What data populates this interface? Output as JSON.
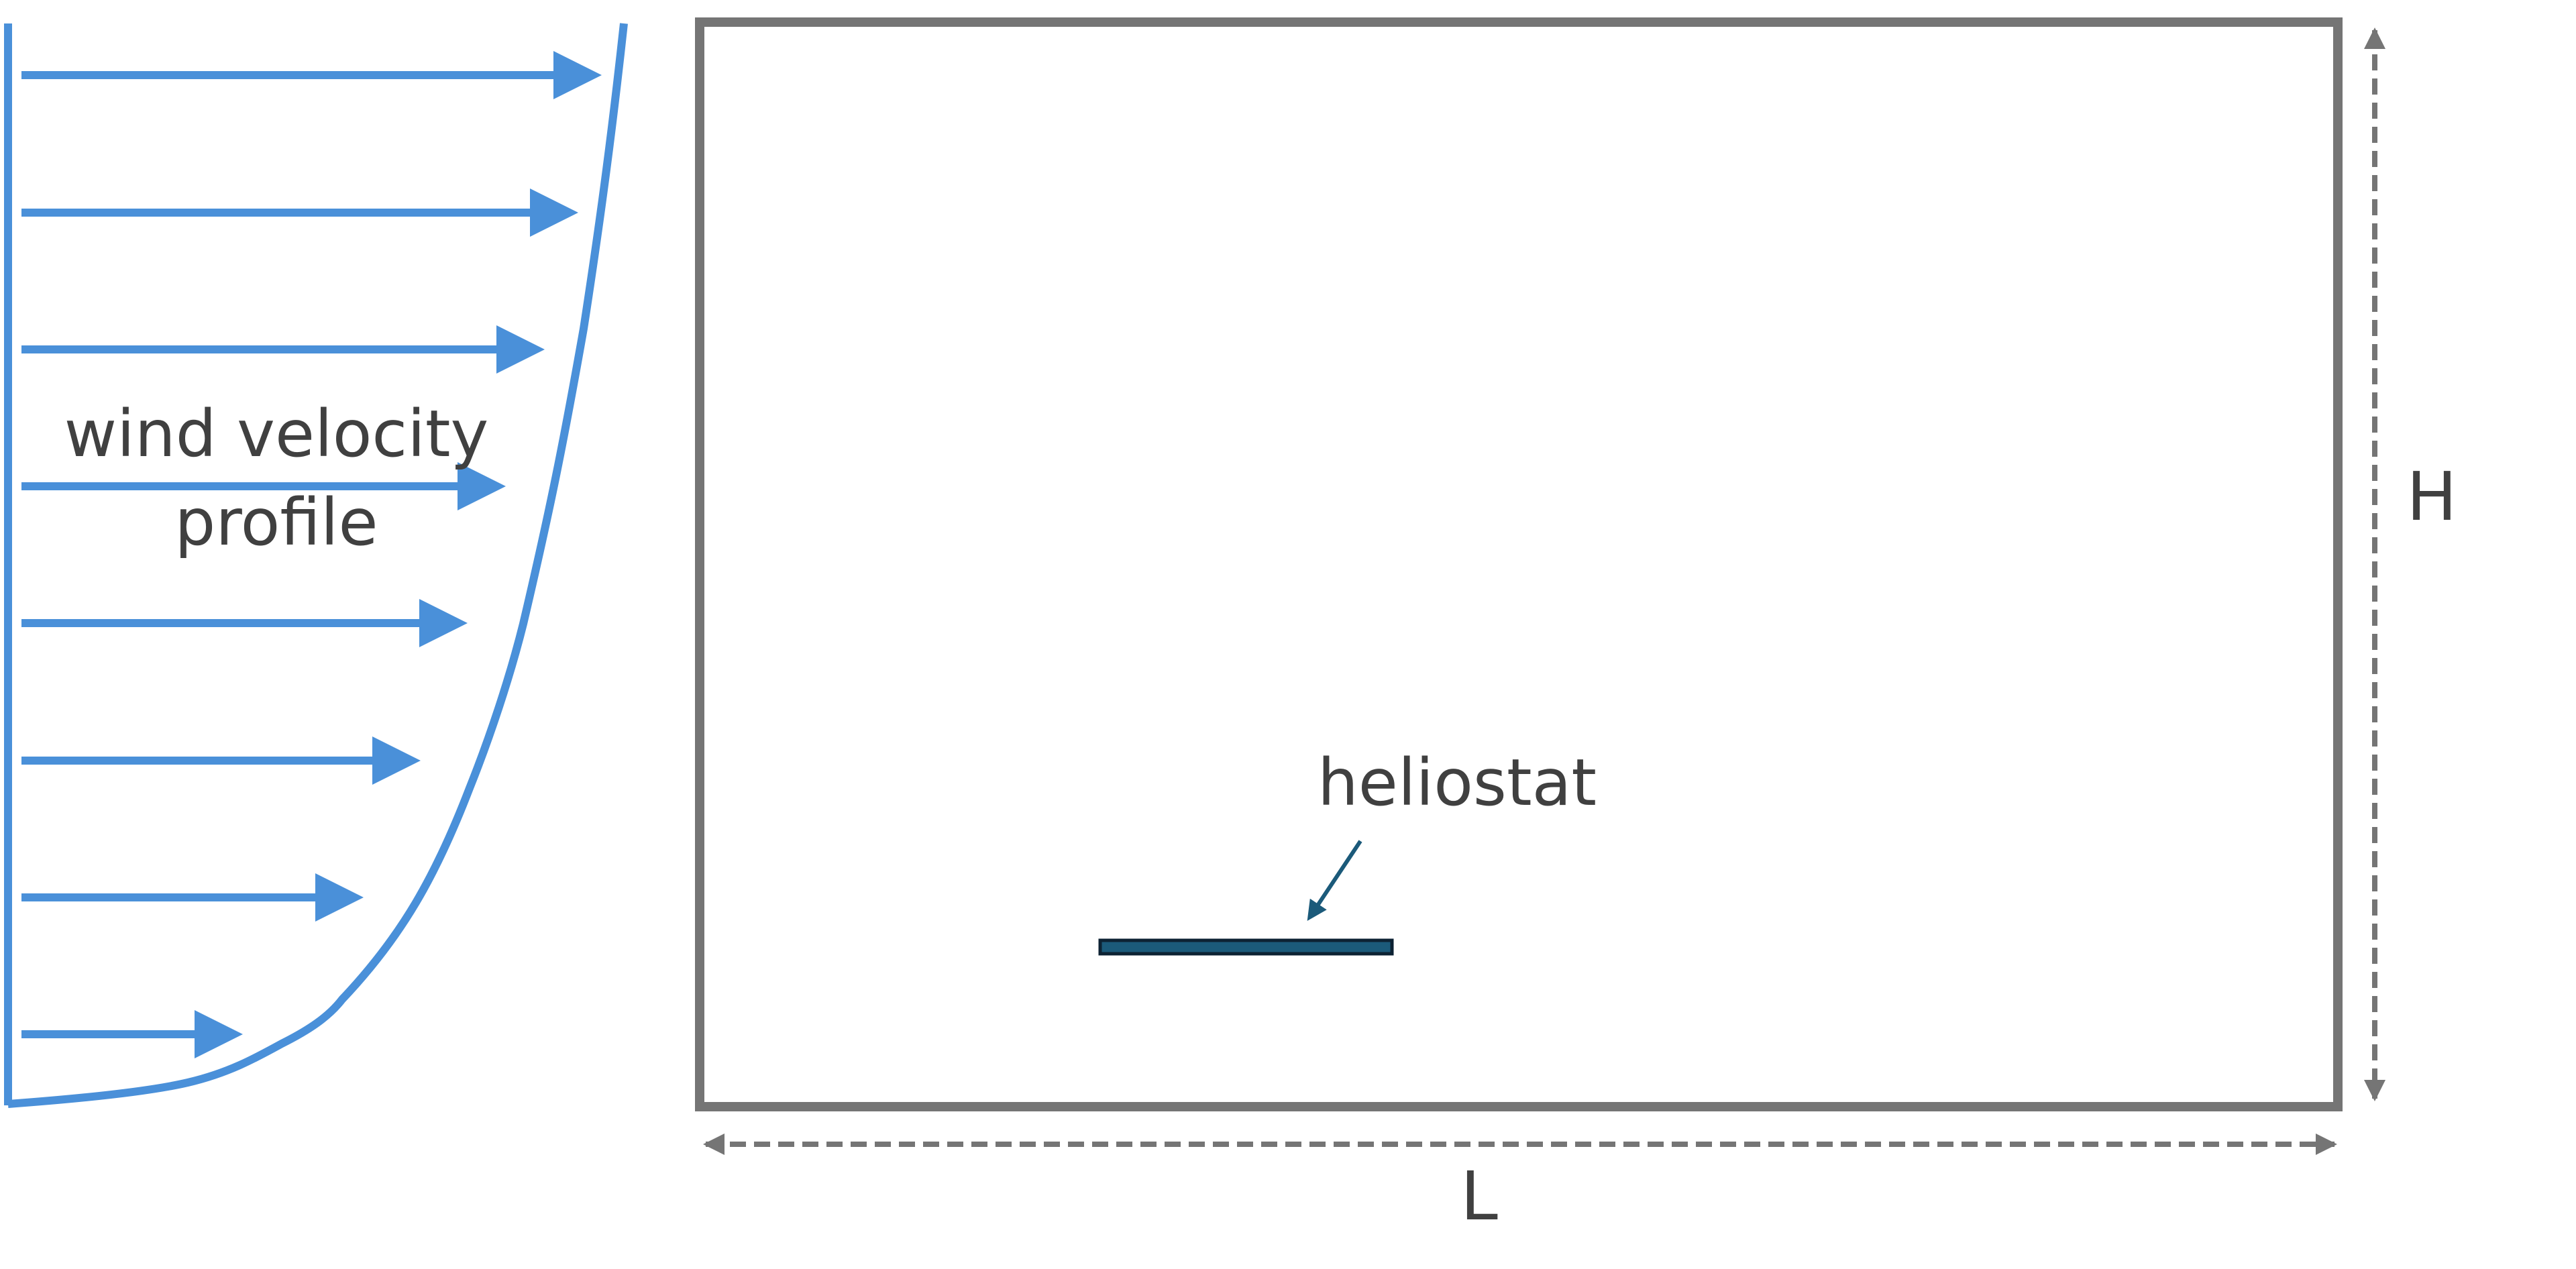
{
  "wind_profile": {
    "label_line1": "wind velocity",
    "label_line2": "profile",
    "color": "#4A90D9",
    "arrow_count": 8
  },
  "domain": {
    "border_color": "#757575"
  },
  "heliostat": {
    "label": "heliostat",
    "fill_color": "#1B5A7A",
    "stroke_color": "#0D2233"
  },
  "dimensions": {
    "height_label": "H",
    "length_label": "L",
    "color": "#757575"
  }
}
